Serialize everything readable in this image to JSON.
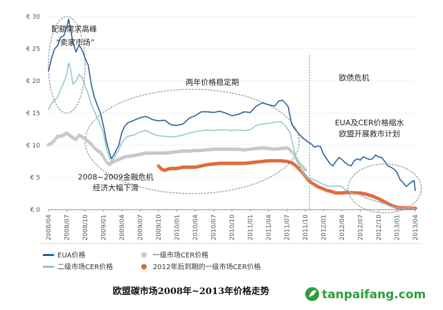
{
  "chart_data": {
    "type": "line",
    "title": "欧盟碳市场2008年~2013年价格走势",
    "ylim": [
      0,
      30
    ],
    "y_ticks": [
      "€ 0",
      "€ 5",
      "€ 10",
      "€ 15",
      "€ 20",
      "€ 25",
      "€ 30"
    ],
    "y_tick_values": [
      0,
      5,
      10,
      15,
      20,
      25,
      30
    ],
    "x_range": [
      "2008-04",
      "2013-04"
    ],
    "x_ticks": [
      "2008/04",
      "2008/07",
      "2008/10",
      "2009/01",
      "2009/04",
      "2009/07",
      "2009/10",
      "2010/01",
      "2010/04",
      "2010/07",
      "2010/10",
      "2011/01",
      "2011/04",
      "2011/07",
      "2011/10",
      "2012/01",
      "2012/04",
      "2012/07",
      "2012/10",
      "2013/01",
      "2013/04"
    ],
    "x_tick_months": [
      0,
      3,
      6,
      9,
      12,
      15,
      18,
      21,
      24,
      27,
      30,
      33,
      36,
      39,
      42,
      45,
      48,
      51,
      54,
      57,
      60
    ],
    "divider_month": 42.7,
    "annotations": [
      {
        "text": "配额需求高峰",
        "month": 4.2,
        "value": 27.7
      },
      {
        "text": "“卖家市场”",
        "month": 4.4,
        "value": 25.6
      },
      {
        "text": "两年价格稳定期",
        "month": 26.8,
        "value": 19.4
      },
      {
        "text": "欧债危机",
        "month": 50.0,
        "value": 20.1
      },
      {
        "text": "EUA及CER价格缩水",
        "month": 52.5,
        "value": 13.1
      },
      {
        "text": "欧盟开展救市计划",
        "month": 52.5,
        "value": 11.4
      },
      {
        "text": "2008~2009金融危机",
        "month": 11.0,
        "value": 4.7
      },
      {
        "text": "经济大幅下滑",
        "month": 11.0,
        "value": 3.0
      }
    ],
    "highlight_ellipses": [
      {
        "cx_month": 3.0,
        "cy_value": 22.5,
        "rx_months": 3.0,
        "ry_value": 7.5
      },
      {
        "cx_month": 23.5,
        "cy_value": 10.6,
        "rx_months": 17.5,
        "ry_value": 8.1
      },
      {
        "cx_month": 55.0,
        "cy_value": 3.3,
        "rx_months": 6.0,
        "ry_value": 3.8
      }
    ],
    "series": [
      {
        "name": "EUA价格",
        "color": "#2b5f99",
        "style": "line",
        "points": [
          [
            0,
            21.5
          ],
          [
            0.5,
            23.5
          ],
          [
            1,
            25
          ],
          [
            1.5,
            25.5
          ],
          [
            2,
            26.8
          ],
          [
            2.5,
            27
          ],
          [
            3,
            28.4
          ],
          [
            3.3,
            29.6
          ],
          [
            3.7,
            27.6
          ],
          [
            4,
            26
          ],
          [
            4.5,
            24.5
          ],
          [
            5,
            25.6
          ],
          [
            5.5,
            24.8
          ],
          [
            6,
            23.5
          ],
          [
            6.5,
            22.5
          ],
          [
            7,
            19.5
          ],
          [
            7.5,
            17.5
          ],
          [
            8,
            16.2
          ],
          [
            8.5,
            15
          ],
          [
            9,
            13
          ],
          [
            9.5,
            10.5
          ],
          [
            10,
            8.8
          ],
          [
            10.3,
            7.9
          ],
          [
            10.8,
            8.7
          ],
          [
            11.5,
            10
          ],
          [
            12,
            12
          ],
          [
            12.5,
            13
          ],
          [
            13,
            13.5
          ],
          [
            14,
            13.9
          ],
          [
            15,
            14.3
          ],
          [
            16,
            14.5
          ],
          [
            17,
            14
          ],
          [
            18,
            13.8
          ],
          [
            19,
            13.9
          ],
          [
            20,
            13.2
          ],
          [
            21,
            13.1
          ],
          [
            22,
            13.3
          ],
          [
            23,
            14.2
          ],
          [
            24,
            14.6
          ],
          [
            25,
            15.2
          ],
          [
            26,
            15.2
          ],
          [
            27,
            15.1
          ],
          [
            28,
            15.3
          ],
          [
            29,
            15.0
          ],
          [
            30,
            14.6
          ],
          [
            31,
            14.8
          ],
          [
            32,
            15.2
          ],
          [
            33,
            15.1
          ],
          [
            34,
            16.1
          ],
          [
            35,
            16.6
          ],
          [
            36,
            16.3
          ],
          [
            37,
            16.1
          ],
          [
            37.7,
            16.9
          ],
          [
            38.3,
            17
          ],
          [
            38.8,
            16.5
          ],
          [
            39.2,
            16
          ],
          [
            39.8,
            13.2
          ],
          [
            40.5,
            12.3
          ],
          [
            41.5,
            11.2
          ],
          [
            42.5,
            10.5
          ],
          [
            43,
            10.2
          ],
          [
            43.5,
            9.7
          ],
          [
            44,
            9.9
          ],
          [
            44.5,
            9.8
          ],
          [
            45,
            8.6
          ],
          [
            45.5,
            7.9
          ],
          [
            46,
            7.2
          ],
          [
            46.5,
            6.8
          ],
          [
            47,
            7.5
          ],
          [
            47.5,
            8.1
          ],
          [
            48,
            7.8
          ],
          [
            48.5,
            7.3
          ],
          [
            49,
            7.0
          ],
          [
            49.5,
            6.8
          ],
          [
            50,
            7.6
          ],
          [
            50.5,
            7.9
          ],
          [
            51,
            7.7
          ],
          [
            51.5,
            8.2
          ],
          [
            52,
            8.0
          ],
          [
            52.5,
            7.8
          ],
          [
            53,
            7.9
          ],
          [
            53.5,
            8.5
          ],
          [
            54,
            8.2
          ],
          [
            54.5,
            8.1
          ],
          [
            55,
            7.5
          ],
          [
            55.5,
            6.8
          ],
          [
            56,
            6.6
          ],
          [
            56.5,
            6.3
          ],
          [
            57,
            5.8
          ],
          [
            57.5,
            4.7
          ],
          [
            58,
            4.2
          ],
          [
            58.5,
            3.6
          ],
          [
            59,
            4.0
          ],
          [
            59.5,
            4.4
          ],
          [
            59.8,
            4.5
          ],
          [
            60,
            2.9
          ]
        ]
      },
      {
        "name": "二级市场CER价格",
        "color": "#8ec4cf",
        "style": "line",
        "points": [
          [
            0,
            15.5
          ],
          [
            0.5,
            16.5
          ],
          [
            1,
            17
          ],
          [
            1.5,
            17.5
          ],
          [
            2,
            18.7
          ],
          [
            2.5,
            19.8
          ],
          [
            3,
            21
          ],
          [
            3.3,
            22.8
          ],
          [
            3.7,
            21.5
          ],
          [
            4,
            19.5
          ],
          [
            4.5,
            20
          ],
          [
            5,
            21
          ],
          [
            5.5,
            20.5
          ],
          [
            6,
            19.2
          ],
          [
            6.5,
            18
          ],
          [
            7,
            16.4
          ],
          [
            7.5,
            15.3
          ],
          [
            8,
            14.2
          ],
          [
            8.5,
            13.2
          ],
          [
            9,
            11.8
          ],
          [
            9.5,
            9.5
          ],
          [
            10,
            8.0
          ],
          [
            10.3,
            7.4
          ],
          [
            10.8,
            8.2
          ],
          [
            11.5,
            9.3
          ],
          [
            12,
            10.4
          ],
          [
            12.5,
            11
          ],
          [
            13,
            11.4
          ],
          [
            14,
            11.6
          ],
          [
            15,
            12.1
          ],
          [
            16,
            12.3
          ],
          [
            17,
            11.8
          ],
          [
            18,
            11.5
          ],
          [
            19,
            11.4
          ],
          [
            20,
            11.3
          ],
          [
            21,
            11.4
          ],
          [
            22,
            11.6
          ],
          [
            23,
            11.9
          ],
          [
            24,
            12.1
          ],
          [
            25,
            12.3
          ],
          [
            26,
            12.4
          ],
          [
            27,
            12.3
          ],
          [
            28,
            12.4
          ],
          [
            29,
            12.4
          ],
          [
            30,
            12.3
          ],
          [
            31,
            12.4
          ],
          [
            32,
            12.3
          ],
          [
            33,
            12.4
          ],
          [
            34,
            13.1
          ],
          [
            35,
            13.3
          ],
          [
            36,
            13.4
          ],
          [
            37,
            13.6
          ],
          [
            38,
            13.7
          ],
          [
            38.8,
            13
          ],
          [
            39.5,
            12
          ],
          [
            40,
            10
          ],
          [
            40.5,
            8
          ],
          [
            41,
            6.9
          ],
          [
            41.5,
            5.9
          ],
          [
            42,
            5.2
          ],
          [
            42.5,
            4.8
          ],
          [
            43,
            4.8
          ],
          [
            43.5,
            4.6
          ],
          [
            44,
            4.4
          ],
          [
            45,
            3.9
          ],
          [
            46,
            3.6
          ],
          [
            47,
            3.7
          ],
          [
            48,
            3.6
          ],
          [
            48.5,
            3.1
          ],
          [
            49,
            3.0
          ],
          [
            49.5,
            2.6
          ],
          [
            50,
            2.5
          ],
          [
            51,
            2.3
          ],
          [
            52,
            1.8
          ],
          [
            53,
            1.5
          ],
          [
            54,
            1.2
          ],
          [
            55,
            0.9
          ],
          [
            56,
            0.5
          ],
          [
            57,
            0.3
          ],
          [
            58,
            0.25
          ],
          [
            59,
            0.3
          ],
          [
            60,
            0.2
          ]
        ]
      },
      {
        "name": "一级市场CER价格",
        "color": "#c8c8c8",
        "style": "dots",
        "points": [
          [
            0,
            10.1
          ],
          [
            0.5,
            10.3
          ],
          [
            1,
            10.8
          ],
          [
            1.5,
            11.4
          ],
          [
            2,
            11.4
          ],
          [
            2.5,
            11.6
          ],
          [
            3,
            11.9
          ],
          [
            3.5,
            11.5
          ],
          [
            4,
            11.2
          ],
          [
            4.5,
            10.9
          ],
          [
            5,
            11.6
          ],
          [
            5.5,
            11.3
          ],
          [
            6,
            11.0
          ],
          [
            6.5,
            10.6
          ],
          [
            7,
            10.2
          ],
          [
            7.5,
            9.6
          ],
          [
            8,
            9.2
          ],
          [
            8.5,
            8.9
          ],
          [
            9,
            8.2
          ],
          [
            9.5,
            7.4
          ],
          [
            10,
            7.0
          ],
          [
            10.5,
            7.4
          ],
          [
            11,
            7.6
          ],
          [
            11.5,
            7.8
          ],
          [
            12,
            8.0
          ],
          [
            12.5,
            8.2
          ],
          [
            13,
            8.3
          ],
          [
            14,
            8.4
          ],
          [
            15,
            8.6
          ],
          [
            16,
            8.8
          ],
          [
            17,
            8.8
          ],
          [
            18,
            8.8
          ],
          [
            19,
            8.8
          ],
          [
            20,
            8.9
          ],
          [
            21,
            9.0
          ],
          [
            22,
            9.1
          ],
          [
            23,
            9.1
          ],
          [
            24,
            9.2
          ],
          [
            25,
            9.2
          ],
          [
            26,
            9.3
          ],
          [
            27,
            9.4
          ],
          [
            28,
            9.4
          ],
          [
            29,
            9.4
          ],
          [
            30,
            9.4
          ],
          [
            31,
            9.4
          ],
          [
            32,
            9.3
          ],
          [
            33,
            9.4
          ],
          [
            34,
            9.5
          ],
          [
            35,
            9.6
          ],
          [
            36,
            9.5
          ],
          [
            37,
            9.4
          ],
          [
            38,
            9.5
          ],
          [
            39,
            9.6
          ],
          [
            39.5,
            9.3
          ],
          [
            40,
            8.8
          ],
          [
            40.5,
            8.0
          ],
          [
            41,
            7.2
          ],
          [
            41.5,
            6.7
          ],
          [
            42,
            6.2
          ]
        ]
      },
      {
        "name": "2012年后到期的一级市场CER价格",
        "color": "#e0683a",
        "style": "dots",
        "points": [
          [
            18,
            6.8
          ],
          [
            18.5,
            6.3
          ],
          [
            19,
            6.1
          ],
          [
            19.5,
            6.3
          ],
          [
            20,
            6.4
          ],
          [
            21,
            6.4
          ],
          [
            22,
            6.6
          ],
          [
            23,
            6.6
          ],
          [
            24,
            6.6
          ],
          [
            25,
            6.8
          ],
          [
            26,
            7.0
          ],
          [
            27,
            7.1
          ],
          [
            28,
            7.2
          ],
          [
            29,
            7.2
          ],
          [
            30,
            7.2
          ],
          [
            31,
            7.2
          ],
          [
            32,
            7.2
          ],
          [
            33,
            7.3
          ],
          [
            34,
            7.4
          ],
          [
            35,
            7.5
          ],
          [
            36,
            7.6
          ],
          [
            37,
            7.6
          ],
          [
            38,
            7.6
          ],
          [
            39,
            7.5
          ],
          [
            39.8,
            7.3
          ],
          [
            40.5,
            6.8
          ],
          [
            41,
            6.3
          ],
          [
            41.5,
            5.8
          ],
          [
            42,
            5.2
          ],
          [
            42.5,
            4.6
          ],
          [
            43,
            4.2
          ],
          [
            43.5,
            3.9
          ],
          [
            44,
            3.6
          ],
          [
            44.5,
            3.4
          ],
          [
            45,
            3.2
          ],
          [
            45.5,
            3.0
          ],
          [
            46,
            2.9
          ],
          [
            47,
            2.6
          ],
          [
            48,
            2.6
          ],
          [
            49,
            2.7
          ],
          [
            50,
            2.6
          ],
          [
            51,
            2.6
          ],
          [
            52,
            2.4
          ],
          [
            53,
            2.1
          ],
          [
            54,
            1.7
          ],
          [
            55,
            1.2
          ],
          [
            56,
            0.7
          ],
          [
            57,
            0.35
          ],
          [
            58,
            0.3
          ],
          [
            59,
            0.25
          ],
          [
            60,
            0.2
          ]
        ]
      }
    ],
    "legend": [
      {
        "label": "EUA价格",
        "marker": "line",
        "color": "#2b5f99"
      },
      {
        "label": "二级市场CER价格",
        "marker": "line",
        "color": "#8ec4cf"
      },
      {
        "label": "一级市场CER价格",
        "marker": "dot",
        "color": "#c8c8c8"
      },
      {
        "label": "2012年后到期的一级市场CER价格",
        "marker": "dot",
        "color": "#e0683a"
      }
    ]
  },
  "footer": {
    "brand": "tanpaifang.com",
    "brand_color": "#2e9d3c"
  }
}
